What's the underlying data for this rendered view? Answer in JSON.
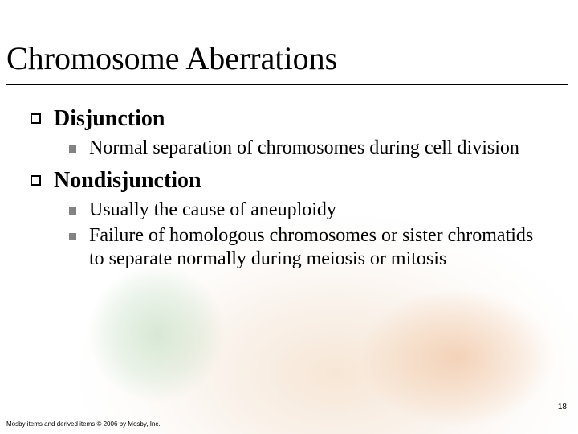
{
  "slide": {
    "title": "Chromosome Aberrations",
    "page_number": "18",
    "copyright": "Mosby items and derived items © 2006 by Mosby, Inc.",
    "colors": {
      "text": "#000000",
      "rule": "#000000",
      "sub_bullet": "#828282",
      "background": "#ffffff"
    },
    "typography": {
      "title_fontsize_pt": 40,
      "lvl1_fontsize_pt": 28,
      "lvl1_weight": "bold",
      "lvl2_fontsize_pt": 24,
      "footer_fontsize_pt": 8,
      "pagenum_fontsize_pt": 10,
      "family": "Times New Roman"
    },
    "items": [
      {
        "label": "Disjunction",
        "children": [
          {
            "label": "Normal separation of chromosomes during cell division"
          }
        ]
      },
      {
        "label": "Nondisjunction",
        "children": [
          {
            "label": "Usually the cause of aneuploidy"
          },
          {
            "label": "Failure of homologous chromosomes or sister chromatids to separate normally during meiosis or mitosis"
          }
        ]
      }
    ]
  }
}
